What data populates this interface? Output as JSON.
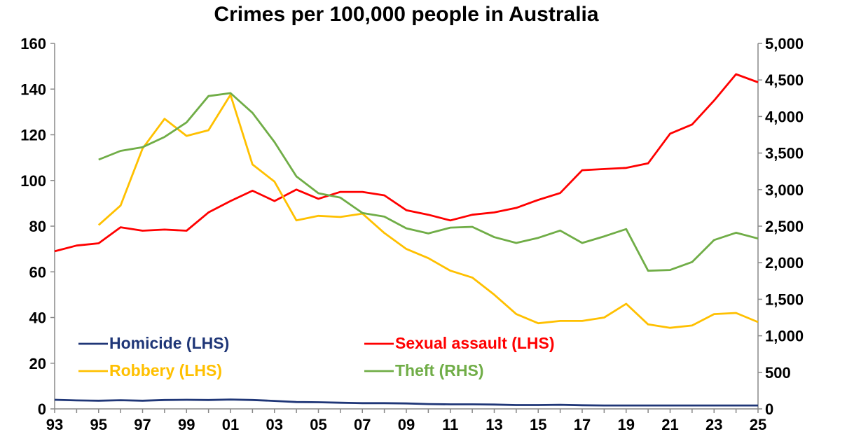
{
  "chart_data": {
    "type": "line",
    "title": "Crimes per 100,000 people in Australia",
    "x_tick_labels": [
      "93",
      "95",
      "97",
      "99",
      "01",
      "03",
      "05",
      "07",
      "09",
      "11",
      "13",
      "15",
      "17",
      "19",
      "21",
      "23",
      "25"
    ],
    "x": [
      1993,
      1994,
      1995,
      1996,
      1997,
      1998,
      1999,
      2000,
      2001,
      2002,
      2003,
      2004,
      2005,
      2006,
      2007,
      2008,
      2009,
      2010,
      2011,
      2012,
      2013,
      2014,
      2015,
      2016,
      2017,
      2018,
      2019,
      2020,
      2021,
      2022,
      2023,
      2024,
      2025
    ],
    "x_range": [
      1993,
      2025
    ],
    "left_axis": {
      "ylim": [
        0,
        160
      ],
      "ticks": [
        0,
        20,
        40,
        60,
        80,
        100,
        120,
        140,
        160
      ],
      "tick_labels": [
        "0",
        "20",
        "40",
        "60",
        "80",
        "100",
        "120",
        "140",
        "160"
      ]
    },
    "right_axis": {
      "ylim": [
        0,
        5000
      ],
      "ticks": [
        0,
        500,
        1000,
        1500,
        2000,
        2500,
        3000,
        3500,
        4000,
        4500,
        5000
      ],
      "tick_labels": [
        "0",
        "500",
        "1,000",
        "1,500",
        "2,000",
        "2,500",
        "3,000",
        "3,500",
        "4,000",
        "4,500",
        "5,000"
      ]
    },
    "grid": false,
    "legend_placement": "bottom-left",
    "series": [
      {
        "name": "Homicide (LHS)",
        "axis": "left",
        "color": "#1f3677",
        "values": [
          4.0,
          3.7,
          3.6,
          3.8,
          3.6,
          3.9,
          4.0,
          3.9,
          4.1,
          3.9,
          3.5,
          3.0,
          2.9,
          2.7,
          2.5,
          2.5,
          2.4,
          2.1,
          2.0,
          2.0,
          1.9,
          1.7,
          1.7,
          1.8,
          1.6,
          1.5,
          1.5,
          1.5,
          1.5,
          1.5,
          1.5,
          1.5,
          1.5
        ]
      },
      {
        "name": "Sexual assault (LHS)",
        "axis": "left",
        "color": "#ff0000",
        "values": [
          69,
          71.5,
          72.5,
          79.5,
          78,
          78.5,
          78,
          86,
          91,
          95.5,
          91,
          96,
          92,
          95,
          95,
          93.5,
          87,
          85,
          82.5,
          85,
          86,
          88,
          91.5,
          94.5,
          104.5,
          105,
          105.5,
          107.5,
          120.5,
          124.5,
          135,
          146.5,
          143
        ]
      },
      {
        "name": "Robbery (LHS)",
        "axis": "left",
        "color": "#ffc000",
        "values": [
          null,
          null,
          80.5,
          89,
          114,
          127,
          119.5,
          122,
          137.5,
          107,
          99.5,
          82.5,
          84.5,
          84,
          85.5,
          77,
          70,
          66,
          60.5,
          57.5,
          50,
          41.5,
          37.5,
          38.5,
          38.5,
          40,
          46,
          37,
          35.5,
          36.5,
          41.5,
          42,
          38
        ]
      },
      {
        "name": "Theft (RHS)",
        "axis": "right",
        "color": "#70ad47",
        "values": [
          null,
          null,
          3410,
          3530,
          3580,
          3720,
          3920,
          4280,
          4320,
          4050,
          3650,
          3180,
          2950,
          2890,
          2680,
          2630,
          2470,
          2400,
          2480,
          2490,
          2350,
          2270,
          2340,
          2440,
          2270,
          2360,
          2460,
          1890,
          1900,
          2010,
          2310,
          2410,
          2330
        ]
      }
    ]
  }
}
